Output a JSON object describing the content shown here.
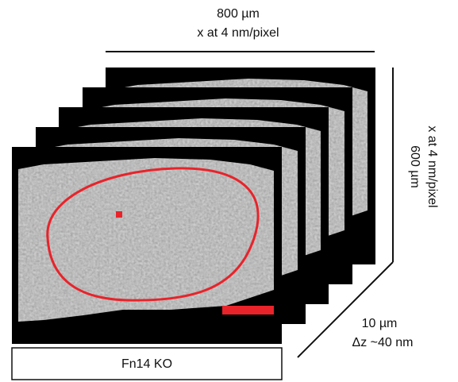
{
  "top_label": {
    "line1": "800 µm",
    "line2": "x at 4 nm/pixel"
  },
  "right_label": {
    "line1": "600 µm",
    "line2": "x at 4 nm/pixel"
  },
  "depth_label": {
    "line1": "10 µm",
    "line2": "Δz ~40 nm"
  },
  "condition": "Fn14 KO"
}
